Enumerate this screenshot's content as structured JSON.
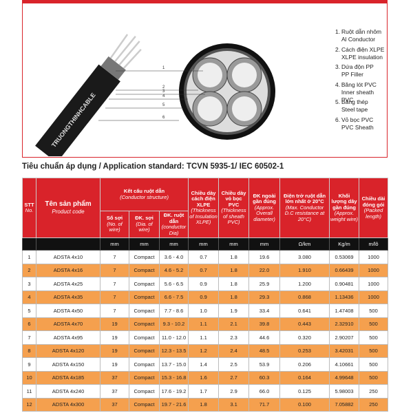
{
  "legend": [
    {
      "num": "1.",
      "vi": "Ruột dẫn nhôm",
      "en": "Al Conductor"
    },
    {
      "num": "2.",
      "vi": "Cách điện XLPE",
      "en": "XLPE insulation"
    },
    {
      "num": "3.",
      "vi": "Dứa độn PP",
      "en": "PP Filler"
    },
    {
      "num": "4.",
      "vi": "Băng lót PVC",
      "en": "Inner sheath PVC"
    },
    {
      "num": "5.",
      "vi": "Băng thép",
      "en": "Steel tape"
    },
    {
      "num": "6.",
      "vi": "Vỏ bọc PVC",
      "en": "PVC Sheath"
    }
  ],
  "callouts": [
    "1",
    "2",
    "3",
    "4",
    "5",
    "6"
  ],
  "cable_print": "TRUONGTHINHCABLE",
  "standard_title": "Tiêu chuẩn áp dụng / Application standard: TCVN 5935-1/ IEC 60502-1",
  "table": {
    "group": {
      "vi": "Kết cấu ruột dẫn",
      "en": "(Conductor structure)"
    },
    "columns": [
      {
        "vi": "STT",
        "en": "No."
      },
      {
        "vi": "Tên sản phẩm",
        "en": "Product code"
      },
      {
        "vi": "Số sợi",
        "en": "(No. of wire)"
      },
      {
        "vi": "ĐK. sợi",
        "en": "(Dia. of wire)"
      },
      {
        "vi": "ĐK. ruột dẫn",
        "en": "(conductor Dia)"
      },
      {
        "vi": "Chiều dày cách điện XLPE",
        "en": "(Thickness of Insulation XLPE)"
      },
      {
        "vi": "Chiều dày vỏ bọc PVC",
        "en": "(Thickness of sheath PVC)"
      },
      {
        "vi": "ĐK ngoài gần đúng",
        "en": "(Approx. Overall diameter)"
      },
      {
        "vi": "Điện trở ruột dẫn lớn nhất ở 20°C",
        "en": "(Max. Conductor D.C resistance at 20°C)"
      },
      {
        "vi": "Khối lượng dây gần đúng",
        "en": "(Approx. weight wire)"
      },
      {
        "vi": "Chiều dài đóng gói",
        "en": "(Packed length)"
      }
    ],
    "units": [
      "mm",
      "mm",
      "mm",
      "mm",
      "mm",
      "mm",
      "Ω/km",
      "Kg/m",
      "m/lô"
    ],
    "rows": [
      [
        "1",
        "ADSTA 4x10",
        "7",
        "Compact",
        "3.6 - 4.0",
        "0.7",
        "1.8",
        "19.6",
        "3.080",
        "0.53069",
        "1000"
      ],
      [
        "2",
        "ADSTA 4x16",
        "7",
        "Compact",
        "4.6 - 5.2",
        "0.7",
        "1.8",
        "22.0",
        "1.910",
        "0.66439",
        "1000"
      ],
      [
        "3",
        "ADSTA 4x25",
        "7",
        "Compact",
        "5.6 - 6.5",
        "0.9",
        "1.8",
        "25.9",
        "1.200",
        "0.90481",
        "1000"
      ],
      [
        "4",
        "ADSTA 4x35",
        "7",
        "Compact",
        "6.6 - 7.5",
        "0.9",
        "1.8",
        "29.3",
        "0.868",
        "1.13436",
        "1000"
      ],
      [
        "5",
        "ADSTA 4x50",
        "7",
        "Compact",
        "7.7 - 8.6",
        "1.0",
        "1.9",
        "33.4",
        "0.641",
        "1.47408",
        "500"
      ],
      [
        "6",
        "ADSTA 4x70",
        "19",
        "Compact",
        "9.3 - 10.2",
        "1.1",
        "2.1",
        "39.8",
        "0.443",
        "2.32910",
        "500"
      ],
      [
        "7",
        "ADSTA 4x95",
        "19",
        "Compact",
        "11.0 - 12.0",
        "1.1",
        "2.3",
        "44.6",
        "0.320",
        "2.90207",
        "500"
      ],
      [
        "8",
        "ADSTA 4x120",
        "19",
        "Compact",
        "12.3 - 13.5",
        "1.2",
        "2.4",
        "48.5",
        "0.253",
        "3.42031",
        "500"
      ],
      [
        "9",
        "ADSTA 4x150",
        "19",
        "Compact",
        "13.7 - 15.0",
        "1.4",
        "2.5",
        "53.9",
        "0.206",
        "4.10661",
        "500"
      ],
      [
        "10",
        "ADSTA 4x185",
        "37",
        "Compact",
        "15.3 - 16.8",
        "1.6",
        "2.7",
        "60.3",
        "0.164",
        "4.99648",
        "500"
      ],
      [
        "11",
        "ADSTA 4x240",
        "37",
        "Compact",
        "17.6 - 19.2",
        "1.7",
        "2.9",
        "66.0",
        "0.125",
        "5.98003",
        "250"
      ],
      [
        "12",
        "ADSTA 4x300",
        "37",
        "Compact",
        "19.7 - 21.6",
        "1.8",
        "3.1",
        "71.7",
        "0.100",
        "7.05882",
        "250"
      ]
    ]
  }
}
